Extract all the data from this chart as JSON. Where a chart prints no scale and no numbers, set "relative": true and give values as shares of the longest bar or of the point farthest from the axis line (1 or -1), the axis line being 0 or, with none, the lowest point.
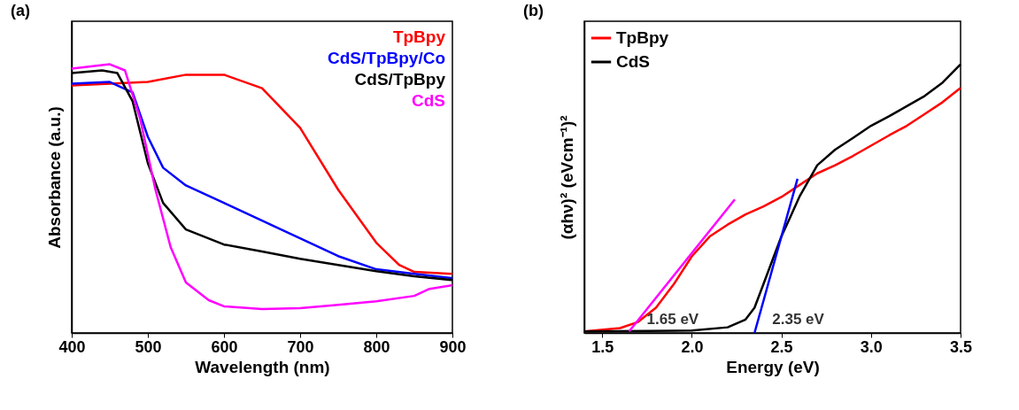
{
  "chart_data": [
    {
      "type": "line",
      "title": "(a)",
      "xlabel": "Wavelength (nm)",
      "ylabel": "Absorbance (a.u.)",
      "relative": true,
      "xlim": [
        400,
        900
      ],
      "xticks": [
        400,
        500,
        600,
        700,
        800,
        900
      ],
      "legend": false,
      "grid": false,
      "series": [
        {
          "name": "TpBpy",
          "color": "#ff0000",
          "x": [
            400,
            450,
            500,
            550,
            600,
            650,
            700,
            750,
            800,
            830,
            850,
            900
          ],
          "values": [
            0.921,
            0.928,
            0.934,
            0.961,
            0.961,
            0.911,
            0.763,
            0.533,
            0.336,
            0.253,
            0.227,
            0.22
          ]
        },
        {
          "name": "CdS/TpBpy/Co",
          "color": "#0000ff",
          "x": [
            400,
            450,
            480,
            500,
            520,
            550,
            600,
            650,
            700,
            750,
            800,
            850,
            900
          ],
          "values": [
            0.928,
            0.934,
            0.895,
            0.73,
            0.615,
            0.549,
            0.484,
            0.418,
            0.352,
            0.286,
            0.237,
            0.22,
            0.204
          ]
        },
        {
          "name": "CdS/TpBpy",
          "color": "#000000",
          "x": [
            400,
            440,
            460,
            480,
            500,
            520,
            550,
            600,
            650,
            700,
            750,
            800,
            850,
            900
          ],
          "values": [
            0.967,
            0.977,
            0.967,
            0.862,
            0.632,
            0.484,
            0.385,
            0.329,
            0.303,
            0.276,
            0.253,
            0.23,
            0.211,
            0.197
          ]
        },
        {
          "name": "CdS",
          "color": "#ff00ff",
          "x": [
            400,
            450,
            470,
            490,
            510,
            530,
            550,
            580,
            600,
            650,
            700,
            750,
            800,
            850,
            870,
            900
          ],
          "values": [
            0.984,
            1,
            0.977,
            0.796,
            0.533,
            0.319,
            0.188,
            0.122,
            0.099,
            0.089,
            0.092,
            0.105,
            0.118,
            0.138,
            0.164,
            0.178
          ]
        }
      ]
    },
    {
      "type": "line",
      "title": "(b)",
      "xlabel": "Energy (eV)",
      "ylabel": "(αhν)² (eVcm⁻¹)²",
      "relative": true,
      "xlim": [
        1.4,
        3.5
      ],
      "xticks": [
        1.5,
        {
          "value": 2,
          "label": "2.0"
        },
        2.5,
        {
          "value": 3,
          "label": "3.0"
        },
        3.5
      ],
      "legend": "top left",
      "grid": false,
      "series": [
        {
          "name": "TpBpy",
          "color": "#ff0000",
          "x": [
            1.4,
            1.6,
            1.7,
            1.8,
            1.9,
            2.0,
            2.1,
            2.2,
            2.3,
            2.4,
            2.5,
            2.6,
            2.7,
            2.8,
            2.9,
            3.0,
            3.1,
            3.2,
            3.3,
            3.4,
            3.5
          ],
          "values": [
            0.006,
            0.018,
            0.041,
            0.094,
            0.182,
            0.285,
            0.359,
            0.403,
            0.441,
            0.471,
            0.506,
            0.55,
            0.594,
            0.624,
            0.659,
            0.697,
            0.735,
            0.771,
            0.815,
            0.859,
            0.912
          ]
        },
        {
          "name": "CdS",
          "color": "#000000",
          "x": [
            1.4,
            2.0,
            2.2,
            2.3,
            2.35,
            2.4,
            2.45,
            2.5,
            2.55,
            2.6,
            2.7,
            2.8,
            2.9,
            3.0,
            3.1,
            3.2,
            3.3,
            3.4,
            3.5
          ],
          "values": [
            0.006,
            0.009,
            0.021,
            0.05,
            0.094,
            0.182,
            0.271,
            0.359,
            0.432,
            0.506,
            0.624,
            0.682,
            0.726,
            0.771,
            0.806,
            0.844,
            0.882,
            0.932,
            1
          ]
        },
        {
          "type": "line",
          "color": "#ff00ff",
          "x": [
            1.65,
            2.24
          ],
          "values": [
            0.006,
            0.497
          ]
        },
        {
          "type": "line",
          "color": "#0000ff",
          "x": [
            2.35,
            2.59
          ],
          "values": [
            0,
            0.574
          ]
        }
      ],
      "annotations": [
        {
          "text": "1.65 eV",
          "x": 1.65,
          "y": 0.05
        },
        {
          "text": "2.35 eV",
          "x": 2.35,
          "y": 0.05
        }
      ]
    }
  ]
}
